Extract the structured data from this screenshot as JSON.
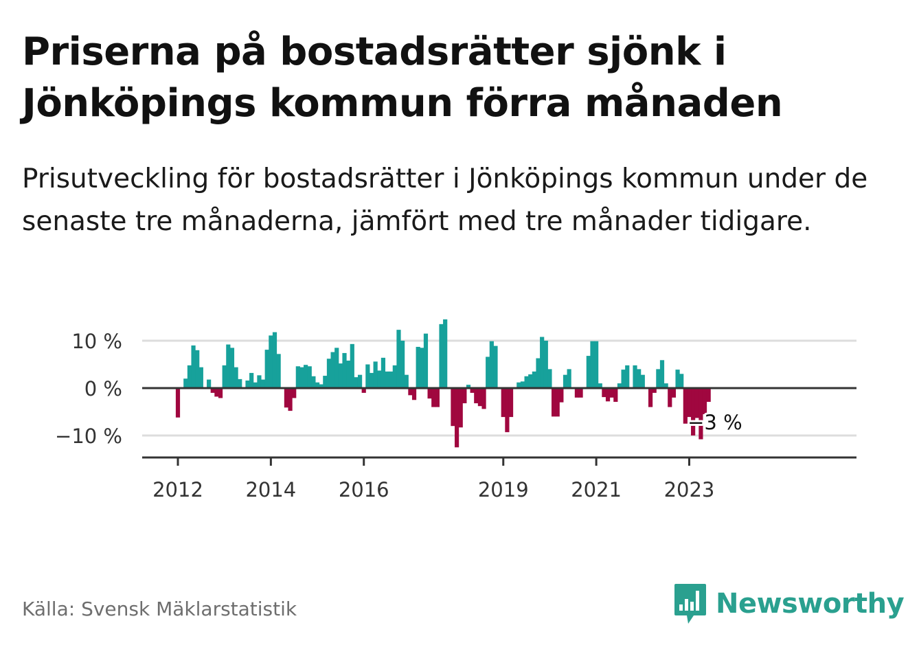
{
  "title": "Priserna på bostadsrätter sjönk i Jönköpings kommun förra månaden",
  "subtitle": "Prisutveckling för bostadsrätter i Jönköpings kommun under de senaste tre månaderna, jämfört med tre månader tidigare.",
  "source": "Källa: Svensk Mäklarstatistik",
  "brand": {
    "name": "Newsworthy",
    "logo_icon": "bar-chart-speech-icon"
  },
  "colors": {
    "positive": "#17a19b",
    "negative": "#a0073f",
    "brand": "#2aa08f",
    "grid": "#dddddd",
    "axis": "#333333"
  },
  "chart_data": {
    "type": "bar",
    "title": "Prisutveckling för bostadsrätter i Jönköpings kommun",
    "xlabel": "",
    "ylabel": "",
    "ylim": [
      -14.5,
      14.5
    ],
    "yticks": [
      10,
      0,
      -10
    ],
    "ytick_labels": [
      "10 %",
      "0 %",
      "−10 %"
    ],
    "xtick_labels": [
      {
        "label": "2012",
        "index": 0
      },
      {
        "label": "2014",
        "index": 24
      },
      {
        "label": "2016",
        "index": 48
      },
      {
        "label": "2019",
        "index": 84
      },
      {
        "label": "2021",
        "index": 108
      },
      {
        "label": "2023",
        "index": 132
      }
    ],
    "annotation": {
      "text": "−3 %",
      "index": 133
    },
    "start": "2012-01",
    "values": [
      -6.2,
      0,
      2,
      4.8,
      9,
      8,
      4.4,
      0,
      1.8,
      -1,
      -1.8,
      -2.1,
      4.8,
      9.2,
      8.5,
      4.4,
      1.9,
      0,
      1.6,
      3.2,
      1.2,
      2.7,
      1.8,
      8.1,
      11.1,
      11.8,
      7.2,
      0,
      -4.1,
      -4.8,
      -2.1,
      4.6,
      4.4,
      4.9,
      4.6,
      2.5,
      1.2,
      0.8,
      2.6,
      6.2,
      7.6,
      8.5,
      5.2,
      7.4,
      5.8,
      9.3,
      2.3,
      2.8,
      -1,
      5,
      3.2,
      5.6,
      3.7,
      6.4,
      3.5,
      3.5,
      4.8,
      12.3,
      10,
      2.8,
      -1.5,
      -2.5,
      8.7,
      8.5,
      11.5,
      -2.2,
      -4,
      -4,
      13.5,
      14.5,
      0,
      -8,
      -12.5,
      -8.3,
      -3.2,
      0.7,
      -1,
      -3.2,
      -3.8,
      -4.4,
      6.6,
      9.9,
      8.9,
      0,
      -6.1,
      -9.3,
      -6.1,
      0,
      1.2,
      1.4,
      2.5,
      2.9,
      3.5,
      6.3,
      10.8,
      10,
      4,
      -6,
      -6,
      -3,
      2.8,
      4,
      0,
      -2,
      -2,
      0,
      6.8,
      9.9,
      9.9,
      1,
      -1.9,
      -2.8,
      -2,
      -2.9,
      1,
      3.9,
      4.8,
      0,
      4.8,
      4,
      2.8,
      0,
      -4,
      -1,
      4,
      5.9,
      1,
      -4,
      -2,
      3.9,
      3,
      -7.5,
      -6.1,
      -10,
      -6.3,
      -10.8,
      -5.5,
      -2.9
    ]
  }
}
